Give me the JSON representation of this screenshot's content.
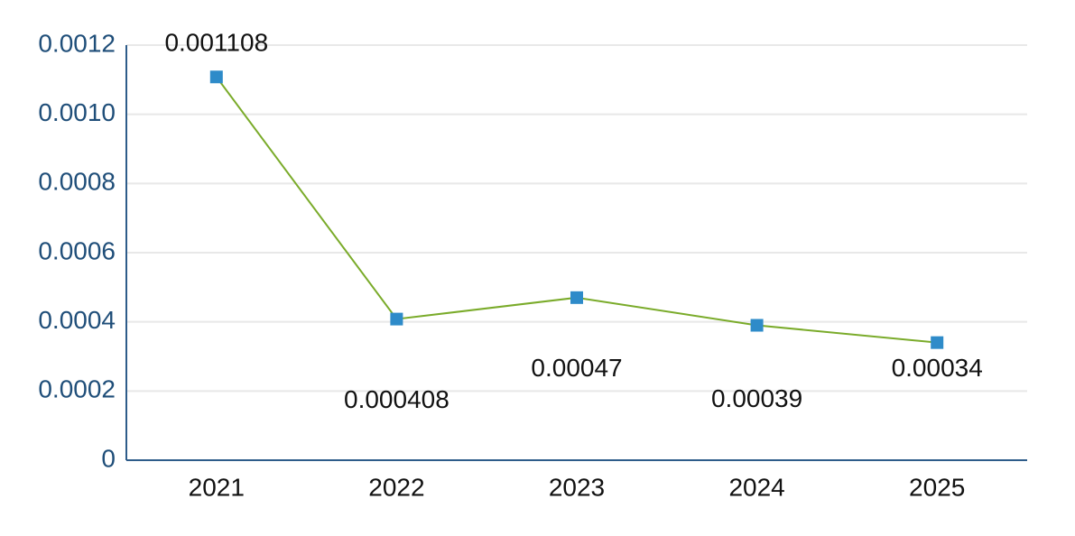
{
  "chart_data": {
    "type": "line",
    "categories": [
      "2021",
      "2022",
      "2023",
      "2024",
      "2025"
    ],
    "values": [
      0.001108,
      0.000408,
      0.00047,
      0.00039,
      0.00034
    ],
    "line_color": "#7aab2a",
    "marker_color": "#2e8bc9",
    "ylim": [
      0,
      0.0012
    ],
    "yticks": [
      0,
      {
        "value": 0.0002,
        "label": "0.0002"
      },
      {
        "value": 0.0004,
        "label": "0.0004"
      },
      {
        "value": 0.0006,
        "label": "0.0006"
      },
      {
        "value": 0.0008,
        "label": "0.0008"
      },
      {
        "value": 0.001,
        "label": "0.0010"
      },
      {
        "value": 0.0012,
        "label": "0.0012"
      }
    ],
    "grid": true
  }
}
